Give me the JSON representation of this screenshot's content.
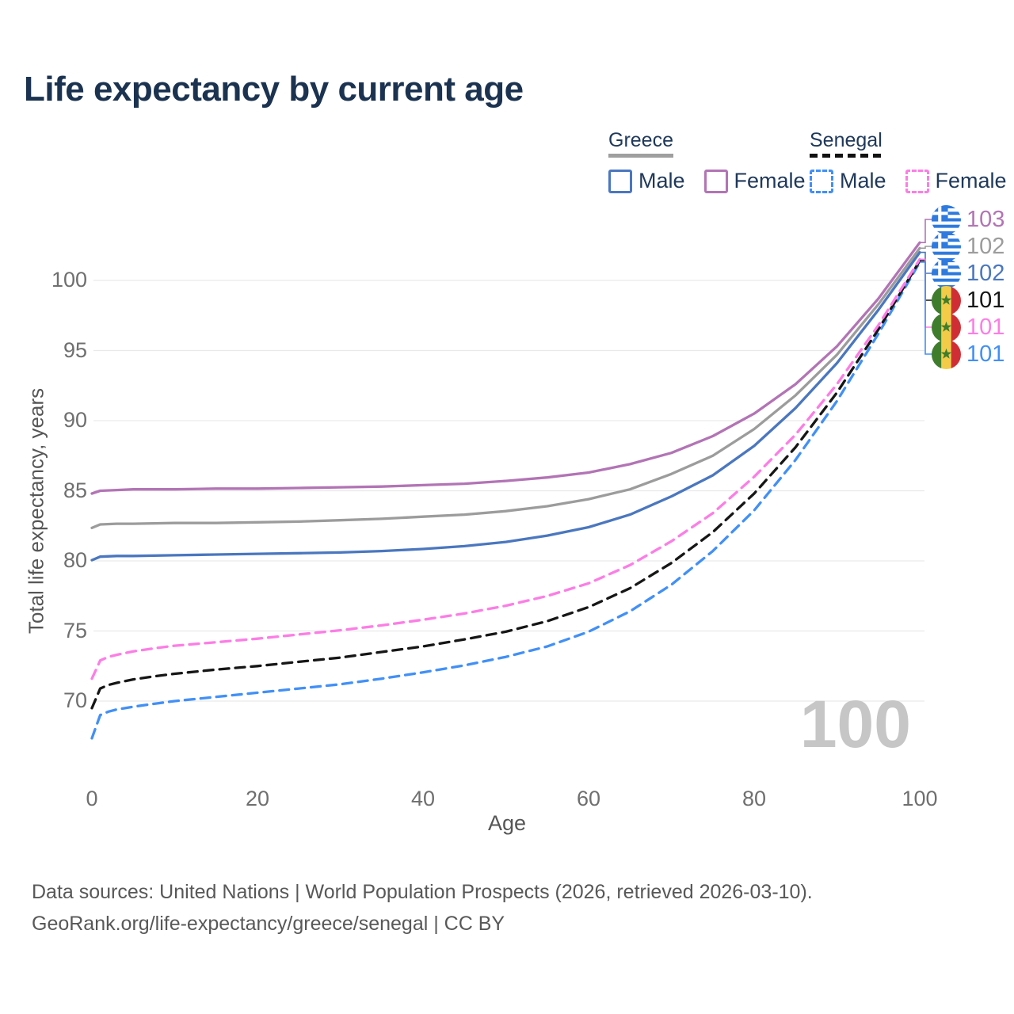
{
  "title": "Life expectancy by current age",
  "legend": {
    "groups": [
      {
        "label": "Greece",
        "line_style": "solid",
        "items": [
          {
            "label": "Male",
            "color": "#4a77bf",
            "dash": false
          },
          {
            "label": "Female",
            "color": "#b274b5",
            "dash": false
          }
        ]
      },
      {
        "label": "Senegal",
        "line_style": "dashed",
        "items": [
          {
            "label": "Male",
            "color": "#4190f7",
            "dash": true
          },
          {
            "label": "Female",
            "color": "#fd7de5",
            "dash": true
          }
        ]
      }
    ]
  },
  "chart_data": {
    "type": "line",
    "title": "Life expectancy by current age",
    "xlabel": "Age",
    "ylabel": "Total life expectancy, years",
    "x_ticks": [
      0,
      20,
      40,
      60,
      80,
      100
    ],
    "y_ticks": [
      70,
      75,
      80,
      85,
      90,
      95,
      100
    ],
    "xlim": [
      0,
      100
    ],
    "ylim": [
      66.5,
      104.5
    ],
    "grid": "horizontal",
    "legend_position": "top-right",
    "series": [
      {
        "name": "Greece Male",
        "id": "greece-male",
        "color": "#4a77bf",
        "dash": false,
        "points": [
          [
            0,
            80.05
          ],
          [
            1,
            80.3
          ],
          [
            3,
            80.35
          ],
          [
            5,
            80.35
          ],
          [
            10,
            80.4
          ],
          [
            15,
            80.45
          ],
          [
            20,
            80.5
          ],
          [
            25,
            80.55
          ],
          [
            30,
            80.6
          ],
          [
            35,
            80.7
          ],
          [
            40,
            80.85
          ],
          [
            45,
            81.05
          ],
          [
            50,
            81.35
          ],
          [
            55,
            81.8
          ],
          [
            60,
            82.4
          ],
          [
            65,
            83.3
          ],
          [
            70,
            84.6
          ],
          [
            75,
            86.1
          ],
          [
            80,
            88.2
          ],
          [
            85,
            90.9
          ],
          [
            90,
            94.1
          ],
          [
            95,
            97.9
          ],
          [
            100,
            102.0
          ]
        ]
      },
      {
        "name": "Greece Both sexes",
        "id": "greece-both",
        "color": "#9c9c9c",
        "dash": false,
        "points": [
          [
            0,
            82.35
          ],
          [
            1,
            82.6
          ],
          [
            3,
            82.65
          ],
          [
            5,
            82.65
          ],
          [
            10,
            82.7
          ],
          [
            15,
            82.7
          ],
          [
            20,
            82.75
          ],
          [
            25,
            82.8
          ],
          [
            30,
            82.9
          ],
          [
            35,
            83.0
          ],
          [
            40,
            83.15
          ],
          [
            45,
            83.3
          ],
          [
            50,
            83.55
          ],
          [
            55,
            83.9
          ],
          [
            60,
            84.4
          ],
          [
            65,
            85.1
          ],
          [
            70,
            86.2
          ],
          [
            75,
            87.5
          ],
          [
            80,
            89.4
          ],
          [
            85,
            91.8
          ],
          [
            90,
            94.7
          ],
          [
            95,
            98.3
          ],
          [
            100,
            102.3
          ]
        ]
      },
      {
        "name": "Greece Female",
        "id": "greece-female",
        "color": "#b274b5",
        "dash": false,
        "points": [
          [
            0,
            84.8
          ],
          [
            1,
            85.0
          ],
          [
            3,
            85.05
          ],
          [
            5,
            85.1
          ],
          [
            10,
            85.1
          ],
          [
            15,
            85.15
          ],
          [
            20,
            85.15
          ],
          [
            25,
            85.2
          ],
          [
            30,
            85.25
          ],
          [
            35,
            85.3
          ],
          [
            40,
            85.4
          ],
          [
            45,
            85.5
          ],
          [
            50,
            85.7
          ],
          [
            55,
            85.95
          ],
          [
            60,
            86.3
          ],
          [
            65,
            86.9
          ],
          [
            70,
            87.7
          ],
          [
            75,
            88.9
          ],
          [
            80,
            90.5
          ],
          [
            85,
            92.6
          ],
          [
            90,
            95.3
          ],
          [
            95,
            98.7
          ],
          [
            100,
            102.7
          ]
        ]
      },
      {
        "name": "Senegal Male",
        "id": "senegal-male",
        "color": "#4190f7",
        "dash": true,
        "points": [
          [
            0,
            67.35
          ],
          [
            1,
            69.0
          ],
          [
            2,
            69.25
          ],
          [
            3,
            69.4
          ],
          [
            5,
            69.6
          ],
          [
            8,
            69.85
          ],
          [
            10,
            70.0
          ],
          [
            15,
            70.3
          ],
          [
            20,
            70.6
          ],
          [
            25,
            70.9
          ],
          [
            30,
            71.2
          ],
          [
            35,
            71.6
          ],
          [
            40,
            72.05
          ],
          [
            45,
            72.55
          ],
          [
            50,
            73.15
          ],
          [
            55,
            73.9
          ],
          [
            60,
            74.95
          ],
          [
            65,
            76.4
          ],
          [
            70,
            78.3
          ],
          [
            75,
            80.7
          ],
          [
            80,
            83.6
          ],
          [
            85,
            87.2
          ],
          [
            90,
            91.4
          ],
          [
            95,
            96.2
          ],
          [
            100,
            101.3
          ]
        ]
      },
      {
        "name": "Senegal Both sexes",
        "id": "senegal-both",
        "color": "#161616",
        "dash": true,
        "points": [
          [
            0,
            69.5
          ],
          [
            1,
            70.9
          ],
          [
            2,
            71.15
          ],
          [
            3,
            71.3
          ],
          [
            5,
            71.55
          ],
          [
            8,
            71.8
          ],
          [
            10,
            71.95
          ],
          [
            15,
            72.25
          ],
          [
            20,
            72.5
          ],
          [
            25,
            72.8
          ],
          [
            30,
            73.1
          ],
          [
            35,
            73.5
          ],
          [
            40,
            73.9
          ],
          [
            45,
            74.4
          ],
          [
            50,
            74.95
          ],
          [
            55,
            75.7
          ],
          [
            60,
            76.7
          ],
          [
            65,
            78.05
          ],
          [
            70,
            79.85
          ],
          [
            75,
            82.05
          ],
          [
            80,
            84.8
          ],
          [
            85,
            88.1
          ],
          [
            90,
            92.0
          ],
          [
            95,
            96.5
          ],
          [
            100,
            101.4
          ]
        ]
      },
      {
        "name": "Senegal Female",
        "id": "senegal-female",
        "color": "#fd7de5",
        "dash": true,
        "points": [
          [
            0,
            71.6
          ],
          [
            1,
            72.9
          ],
          [
            2,
            73.15
          ],
          [
            3,
            73.3
          ],
          [
            5,
            73.55
          ],
          [
            8,
            73.8
          ],
          [
            10,
            73.95
          ],
          [
            15,
            74.2
          ],
          [
            20,
            74.45
          ],
          [
            25,
            74.75
          ],
          [
            30,
            75.05
          ],
          [
            35,
            75.4
          ],
          [
            40,
            75.8
          ],
          [
            45,
            76.25
          ],
          [
            50,
            76.8
          ],
          [
            55,
            77.5
          ],
          [
            60,
            78.4
          ],
          [
            65,
            79.7
          ],
          [
            70,
            81.4
          ],
          [
            75,
            83.4
          ],
          [
            80,
            86.0
          ],
          [
            85,
            89.0
          ],
          [
            90,
            92.6
          ],
          [
            95,
            96.8
          ],
          [
            100,
            101.5
          ]
        ]
      }
    ],
    "end_labels": [
      {
        "text": "103",
        "series": "greece-female",
        "flag": "greece",
        "color": "#b274b5"
      },
      {
        "text": "102",
        "series": "greece-both",
        "flag": "greece",
        "color": "#9c9c9c"
      },
      {
        "text": "102",
        "series": "greece-male",
        "flag": "greece",
        "color": "#4a77bf"
      },
      {
        "text": "101",
        "series": "senegal-both",
        "flag": "senegal",
        "color": "#161616"
      },
      {
        "text": "101",
        "series": "senegal-female",
        "flag": "senegal",
        "color": "#fd7de5"
      },
      {
        "text": "101",
        "series": "senegal-male",
        "flag": "senegal",
        "color": "#4190f7"
      }
    ]
  },
  "watermark": "100",
  "footer": {
    "line1": "Data sources: United Nations | World Population Prospects (2026, retrieved 2026-03-10).",
    "line2": "GeoRank.org/life-expectancy/greece/senegal | CC BY"
  },
  "colors": {
    "title": "#1b3350",
    "legend_text": "#20395a",
    "grid": "#e9e9e9",
    "tick": "#6f6f6f",
    "watermark": "#c6c6c6",
    "greek_flag_blue": "#2e7ade",
    "senegal_flag_green": "#3f7d2c",
    "senegal_flag_yellow": "#f2cc49",
    "senegal_flag_red": "#d02e35"
  }
}
